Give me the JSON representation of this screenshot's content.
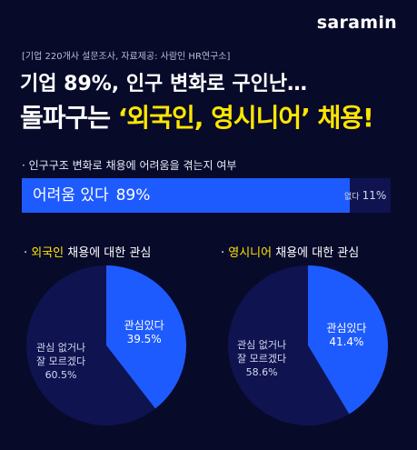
{
  "logo": "saramin",
  "source": "[기업 220개사 설문조사, 자료제공: 사람인 HR연구소]",
  "headline": {
    "line1": "기업 89%, 인구 변화로 구인난…",
    "line2_plain": "돌파구는 ",
    "line2_highlight": "‘외국인, 영시니어’",
    "line2_end": " 채용!"
  },
  "colors": {
    "background": "#080a2a",
    "accent_blue": "#1e5bff",
    "dark_slice": "#0f1350",
    "highlight": "#ffe600"
  },
  "chart_data": [
    {
      "type": "bar",
      "title": "· 인구구조 변화로 채용에 어려움을 겪는지 여부",
      "categories": [
        "어려움 있다",
        "없다"
      ],
      "values": [
        89,
        11
      ],
      "value_labels": [
        "89%",
        "11%"
      ],
      "orientation": "horizontal-stacked"
    },
    {
      "type": "pie",
      "title_prefix": "· ",
      "title_highlight": "외국인",
      "title_rest": " 채용에 대한 관심",
      "slices": [
        {
          "label_lines": [
            "관심있다"
          ],
          "value": 39.5,
          "value_label": "39.5%"
        },
        {
          "label_lines": [
            "관심 없거나",
            "잘 모르겠다"
          ],
          "value": 60.5,
          "value_label": "60.5%"
        }
      ]
    },
    {
      "type": "pie",
      "title_prefix": "· ",
      "title_highlight": "영시니어",
      "title_rest": " 채용에 대한 관심",
      "slices": [
        {
          "label_lines": [
            "관심있다"
          ],
          "value": 41.4,
          "value_label": "41.4%"
        },
        {
          "label_lines": [
            "관심 없거나",
            "잘 모르겠다"
          ],
          "value": 58.6,
          "value_label": "58.6%"
        }
      ]
    }
  ]
}
